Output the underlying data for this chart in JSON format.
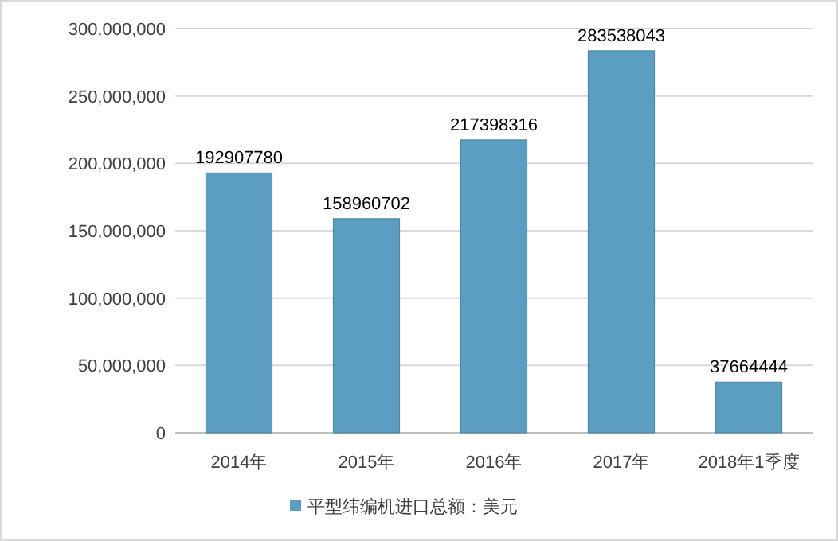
{
  "chart_data": {
    "type": "bar",
    "categories": [
      "2014年",
      "2015年",
      "2016年",
      "2017年",
      "2018年1季度"
    ],
    "series": [
      {
        "name": "平型纬编机进口总额：美元",
        "color": "#5b9ec2",
        "values": [
          192907780,
          158960702,
          217398316,
          283538043,
          37664444
        ]
      }
    ],
    "ylim": [
      0,
      300000000
    ],
    "yticks": [
      0,
      {
        "value": 50000000,
        "label": "50,000,000"
      },
      {
        "value": 100000000,
        "label": "100,000,000"
      },
      {
        "value": 150000000,
        "label": "150,000,000"
      },
      {
        "value": 200000000,
        "label": "200,000,000"
      },
      {
        "value": 250000000,
        "label": "250,000,000"
      },
      {
        "value": 300000000,
        "label": "300,000,000"
      }
    ],
    "grid": "y",
    "legend": "bottom",
    "data_labels": true
  }
}
